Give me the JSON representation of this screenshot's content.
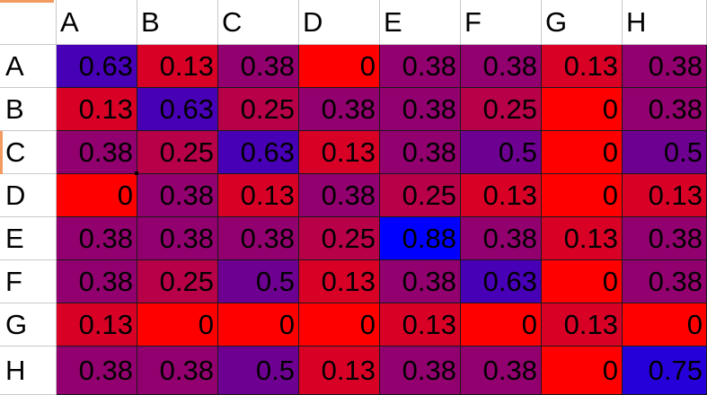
{
  "spreadsheet": {
    "column_headers": [
      "A",
      "B",
      "C",
      "D",
      "E",
      "F",
      "G",
      "H"
    ],
    "row_headers": [
      "A",
      "B",
      "C",
      "D",
      "E",
      "F",
      "G",
      "H"
    ],
    "cells": [
      [
        "0.63",
        "0.13",
        "0.38",
        "0",
        "0.38",
        "0.38",
        "0.13",
        "0.38"
      ],
      [
        "0.13",
        "0.63",
        "0.25",
        "0.38",
        "0.38",
        "0.25",
        "0",
        "0.38"
      ],
      [
        "0.38",
        "0.25",
        "0.63",
        "0.13",
        "0.38",
        "0.5",
        "0",
        "0.5"
      ],
      [
        "0",
        "0.38",
        "0.13",
        "0.38",
        "0.25",
        "0.13",
        "0",
        "0.13"
      ],
      [
        "0.38",
        "0.38",
        "0.38",
        "0.25",
        "0.88",
        "0.38",
        "0.13",
        "0.38"
      ],
      [
        "0.38",
        "0.25",
        "0.5",
        "0.13",
        "0.38",
        "0.63",
        "0",
        "0.38"
      ],
      [
        "0.13",
        "0",
        "0",
        "0",
        "0.13",
        "0",
        "0.13",
        "0"
      ],
      [
        "0.38",
        "0.38",
        "0.5",
        "0.13",
        "0.38",
        "0.38",
        "0",
        "0.75"
      ]
    ],
    "color_scale": {
      "low": "#ff0000",
      "high": "#0000ff",
      "min": 0,
      "max": 0.88
    },
    "accent_color": "#f39c60"
  }
}
